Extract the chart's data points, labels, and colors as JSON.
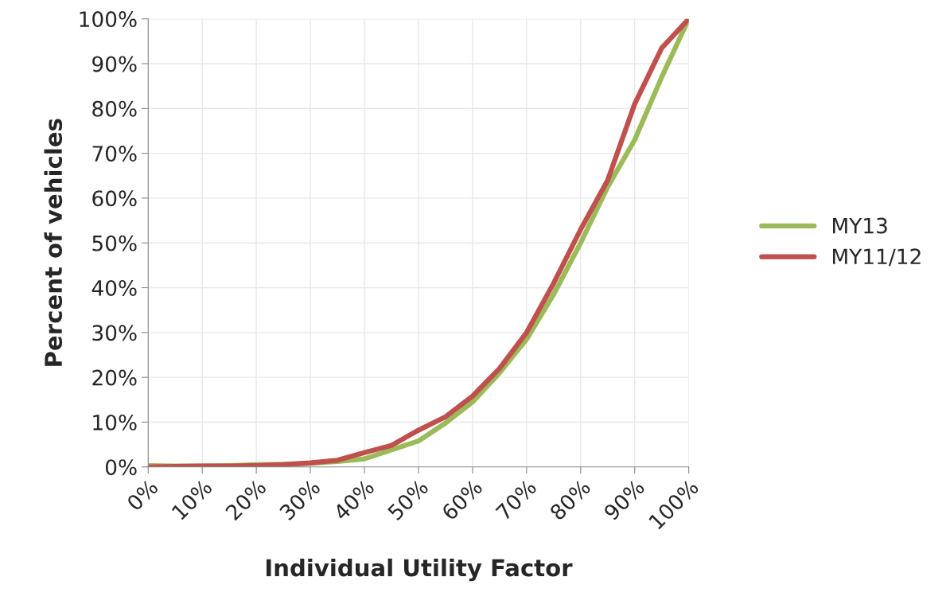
{
  "chart_data": {
    "type": "line",
    "xlabel": "Individual Utility Factor",
    "ylabel": "Percent of vehicles",
    "x": [
      0,
      5,
      10,
      15,
      20,
      25,
      30,
      35,
      40,
      45,
      50,
      55,
      60,
      65,
      70,
      75,
      80,
      85,
      90,
      95,
      100
    ],
    "series": [
      {
        "name": "MY13",
        "color": "#9bbb59",
        "values": [
          0.3,
          0.2,
          0.2,
          0.3,
          0.5,
          0.6,
          0.8,
          1.2,
          1.8,
          3.8,
          5.8,
          9.8,
          14.5,
          21,
          28.5,
          38.5,
          50,
          62.5,
          73,
          87,
          100
        ]
      },
      {
        "name": "MY11/12",
        "color": "#c0504d",
        "values": [
          0,
          0.1,
          0.2,
          0.2,
          0.3,
          0.5,
          0.9,
          1.5,
          3.2,
          4.8,
          8.2,
          11.2,
          15.8,
          22,
          30,
          41,
          53,
          64,
          81,
          93.5,
          100
        ]
      }
    ],
    "xlim": [
      0,
      100
    ],
    "ylim": [
      0,
      100
    ],
    "xticks": [
      {
        "value": 0,
        "label": "0%"
      },
      {
        "value": 10,
        "label": "10%"
      },
      {
        "value": 20,
        "label": "20%"
      },
      {
        "value": 30,
        "label": "30%"
      },
      {
        "value": 40,
        "label": "40%"
      },
      {
        "value": 50,
        "label": "50%"
      },
      {
        "value": 60,
        "label": "60%"
      },
      {
        "value": 70,
        "label": "70%"
      },
      {
        "value": 80,
        "label": "80%"
      },
      {
        "value": 90,
        "label": "90%"
      },
      {
        "value": 100,
        "label": "100%"
      }
    ],
    "yticks": [
      {
        "value": 0,
        "label": "0%"
      },
      {
        "value": 10,
        "label": "10%"
      },
      {
        "value": 20,
        "label": "20%"
      },
      {
        "value": 30,
        "label": "30%"
      },
      {
        "value": 40,
        "label": "40%"
      },
      {
        "value": 50,
        "label": "50%"
      },
      {
        "value": 60,
        "label": "60%"
      },
      {
        "value": 70,
        "label": "70%"
      },
      {
        "value": 80,
        "label": "80%"
      },
      {
        "value": 90,
        "label": "90%"
      },
      {
        "value": 100,
        "label": "100%"
      }
    ],
    "grid": true,
    "legend": "right",
    "line_style": "solid"
  }
}
